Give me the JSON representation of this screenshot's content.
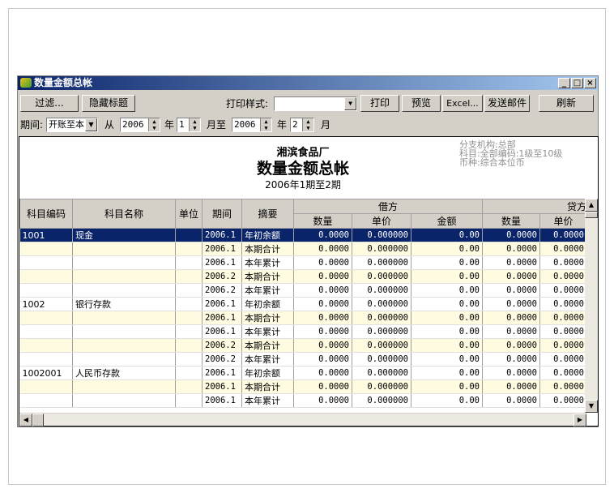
{
  "window": {
    "title": "数量金额总帐",
    "minimize": "_",
    "maximize": "□",
    "close": "×"
  },
  "toolbar": {
    "filter": "过滤...",
    "hide_title": "隐藏标题",
    "print_style_label": "打印样式:",
    "print_style_value": "",
    "print": "打印",
    "preview": "预览",
    "excel": "Excel...",
    "send_mail": "发送邮件",
    "refresh": "刷新"
  },
  "period_bar": {
    "label": "期间:",
    "mode": "开账至本",
    "from": "从",
    "from_year": "2006",
    "year1": "年",
    "from_month": "1",
    "month_to": "月至",
    "to_year": "2006",
    "year2": "年",
    "to_month": "2",
    "month": "月"
  },
  "report": {
    "company": "湘滨食品厂",
    "title": "数量金额总帐",
    "period": "2006年1期至2期",
    "meta": [
      "分支机构:总部",
      "科目:全部编码:1级至10级",
      "币种:综合本位币"
    ]
  },
  "table": {
    "headers": {
      "code": "科目编码",
      "name": "科目名称",
      "unit": "单位",
      "period": "期间",
      "summary": "摘要",
      "debit": "借方",
      "credit": "贷方",
      "qty": "数量",
      "price": "单价",
      "amount": "金额"
    },
    "rows": [
      [
        "1001",
        "现金",
        "",
        "2006.1",
        "年初余额",
        "0.0000",
        "0.000000",
        "0.00",
        "0.0000",
        "0.0000"
      ],
      [
        "",
        "",
        "",
        "2006.1",
        "本期合计",
        "0.0000",
        "0.000000",
        "0.00",
        "0.0000",
        "0.0000"
      ],
      [
        "",
        "",
        "",
        "2006.1",
        "本年累计",
        "0.0000",
        "0.000000",
        "0.00",
        "0.0000",
        "0.0000"
      ],
      [
        "",
        "",
        "",
        "2006.2",
        "本期合计",
        "0.0000",
        "0.000000",
        "0.00",
        "0.0000",
        "0.0000"
      ],
      [
        "",
        "",
        "",
        "2006.2",
        "本年累计",
        "0.0000",
        "0.000000",
        "0.00",
        "0.0000",
        "0.0000"
      ],
      [
        "1002",
        "银行存款",
        "",
        "2006.1",
        "年初余额",
        "0.0000",
        "0.000000",
        "0.00",
        "0.0000",
        "0.0000"
      ],
      [
        "",
        "",
        "",
        "2006.1",
        "本期合计",
        "0.0000",
        "0.000000",
        "0.00",
        "0.0000",
        "0.0000"
      ],
      [
        "",
        "",
        "",
        "2006.1",
        "本年累计",
        "0.0000",
        "0.000000",
        "0.00",
        "0.0000",
        "0.0000"
      ],
      [
        "",
        "",
        "",
        "2006.2",
        "本期合计",
        "0.0000",
        "0.000000",
        "0.00",
        "0.0000",
        "0.0000"
      ],
      [
        "",
        "",
        "",
        "2006.2",
        "本年累计",
        "0.0000",
        "0.000000",
        "0.00",
        "0.0000",
        "0.0000"
      ],
      [
        "1002001",
        "人民币存款",
        "",
        "2006.1",
        "年初余额",
        "0.0000",
        "0.000000",
        "0.00",
        "0.0000",
        "0.0000"
      ],
      [
        "",
        "",
        "",
        "2006.1",
        "本期合计",
        "0.0000",
        "0.000000",
        "0.00",
        "0.0000",
        "0.0000"
      ],
      [
        "",
        "",
        "",
        "2006.1",
        "本年累计",
        "0.0000",
        "0.000000",
        "0.00",
        "0.0000",
        "0.0000"
      ]
    ],
    "selected_row": 0
  },
  "colors": {
    "selection": "#0a246a",
    "alt_row": "#fffbe0"
  }
}
